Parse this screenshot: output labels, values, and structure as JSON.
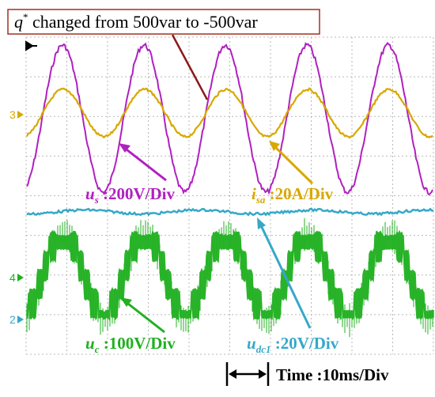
{
  "chart_data": {
    "type": "line",
    "title": "q* changed from 500var to -500var",
    "title_main": "q",
    "title_sup": "*",
    "title_rest": " changed from 500var to -500var",
    "grid": true,
    "grid_color": "#b8b8b8",
    "time_label": "Time :10ms/Div",
    "channel_markers": [
      "3",
      "4",
      "2"
    ],
    "series": [
      {
        "id": "us",
        "symbol": "u",
        "subscript": "s",
        "scale": " :200V/Div",
        "color": "#b020c0",
        "cycles": 5,
        "phase_cycles": -0.25
      },
      {
        "id": "isa",
        "symbol": "i",
        "subscript": "sa",
        "scale": " :20A/Div",
        "color": "#d8a800",
        "cycles": 5,
        "phase_cycles": 0.0
      },
      {
        "id": "udc1",
        "symbol": "u",
        "subscript": "dc1",
        "scale": " :20V/Div",
        "color": "#35a8c8",
        "cycles": 0,
        "phase_cycles": 0
      },
      {
        "id": "uc",
        "symbol": "u",
        "subscript": "c",
        "scale": " :100V/Div",
        "color": "#20b020",
        "cycles": 5,
        "phase_cycles": 0.25
      }
    ]
  }
}
